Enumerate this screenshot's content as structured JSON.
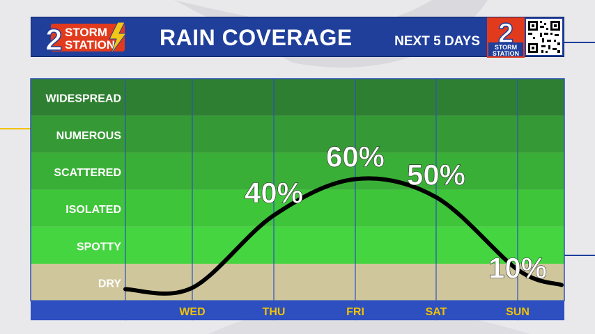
{
  "header": {
    "title": "RAIN COVERAGE",
    "subtitle": "NEXT 5 DAYS",
    "logo_number": "2",
    "logo_word1": "STORM",
    "logo_word2": "STATION"
  },
  "colors": {
    "header_bg": "#1f3f9b",
    "axis_bar": "#2d4fc0",
    "day_label": "#f2c200",
    "curve": "#000000",
    "logo_red": "#e23a1d",
    "logo_yellow": "#f3c515"
  },
  "chart_data": {
    "type": "line",
    "categories_y": [
      "DRY",
      "SPOTTY",
      "ISOLATED",
      "SCATTERED",
      "NUMEROUS",
      "WIDESPREAD"
    ],
    "band_colors": [
      "#cfc79b",
      "#45d540",
      "#3fc53a",
      "#3aaf37",
      "#359a35",
      "#2f7f32"
    ],
    "x": [
      "WED",
      "THU",
      "FRI",
      "SAT",
      "SUN"
    ],
    "series": [
      {
        "values": [
          0,
          40,
          60,
          50,
          10
        ],
        "labels": [
          "",
          "40%",
          "60%",
          "50%",
          "10%"
        ]
      }
    ]
  }
}
